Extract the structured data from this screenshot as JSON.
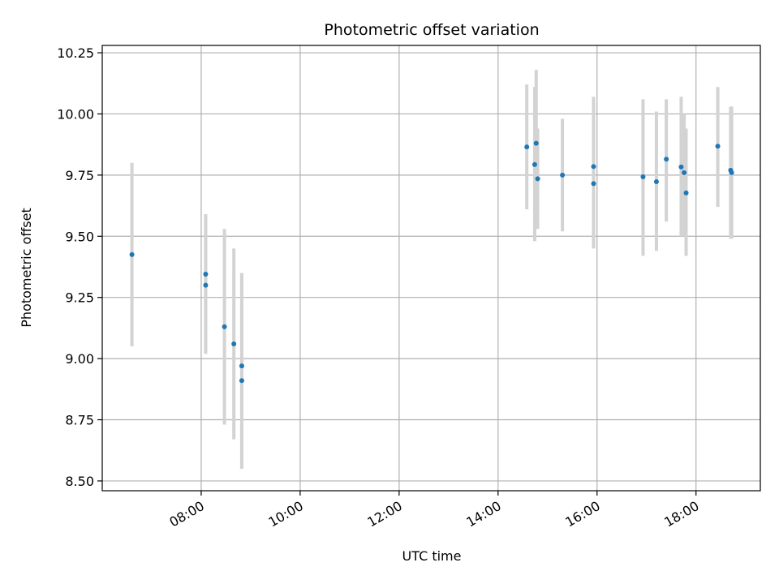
{
  "chart_data": {
    "type": "scatter",
    "title": "Photometric offset variation",
    "xlabel": "UTC time",
    "ylabel": "Photometric offset",
    "x_unit": "hours UTC",
    "xlim": [
      6.0,
      19.3
    ],
    "ylim": [
      8.46,
      10.28
    ],
    "x_ticks": [
      {
        "value": 8,
        "label": "08:00"
      },
      {
        "value": 10,
        "label": "10:00"
      },
      {
        "value": 12,
        "label": "12:00"
      },
      {
        "value": 14,
        "label": "14:00"
      },
      {
        "value": 16,
        "label": "16:00"
      },
      {
        "value": 18,
        "label": "18:00"
      }
    ],
    "y_ticks": [
      {
        "value": 8.5,
        "label": "8.50"
      },
      {
        "value": 8.75,
        "label": "8.75"
      },
      {
        "value": 9.0,
        "label": "9.00"
      },
      {
        "value": 9.25,
        "label": "9.25"
      },
      {
        "value": 9.5,
        "label": "9.50"
      },
      {
        "value": 9.75,
        "label": "9.75"
      },
      {
        "value": 10.0,
        "label": "10.00"
      },
      {
        "value": 10.25,
        "label": "10.25"
      }
    ],
    "grid": true,
    "marker_color": "#1f77b4",
    "errorbar_color": "#d3d3d3",
    "points": [
      {
        "x": 6.6,
        "y": 9.425,
        "ylow": 9.05,
        "yhigh": 9.8
      },
      {
        "x": 8.09,
        "y": 9.345,
        "ylow": 9.02,
        "yhigh": 9.59
      },
      {
        "x": 8.09,
        "y": 9.3,
        "ylow": 9.02,
        "yhigh": 9.59
      },
      {
        "x": 8.47,
        "y": 9.13,
        "ylow": 8.73,
        "yhigh": 9.53
      },
      {
        "x": 8.66,
        "y": 9.06,
        "ylow": 8.67,
        "yhigh": 9.45
      },
      {
        "x": 8.82,
        "y": 8.97,
        "ylow": 8.55,
        "yhigh": 9.35
      },
      {
        "x": 8.82,
        "y": 8.91,
        "ylow": 8.55,
        "yhigh": 9.35
      },
      {
        "x": 14.58,
        "y": 9.865,
        "ylow": 9.61,
        "yhigh": 10.12
      },
      {
        "x": 14.74,
        "y": 9.793,
        "ylow": 9.48,
        "yhigh": 10.11
      },
      {
        "x": 14.77,
        "y": 9.88,
        "ylow": 9.53,
        "yhigh": 10.18
      },
      {
        "x": 14.8,
        "y": 9.735,
        "ylow": 9.53,
        "yhigh": 9.94
      },
      {
        "x": 15.3,
        "y": 9.75,
        "ylow": 9.52,
        "yhigh": 9.98
      },
      {
        "x": 15.93,
        "y": 9.785,
        "ylow": 9.5,
        "yhigh": 10.07
      },
      {
        "x": 15.93,
        "y": 9.715,
        "ylow": 9.45,
        "yhigh": 9.98
      },
      {
        "x": 16.93,
        "y": 9.743,
        "ylow": 9.42,
        "yhigh": 10.06
      },
      {
        "x": 17.2,
        "y": 9.723,
        "ylow": 9.44,
        "yhigh": 10.01
      },
      {
        "x": 17.4,
        "y": 9.815,
        "ylow": 9.56,
        "yhigh": 10.06
      },
      {
        "x": 17.7,
        "y": 9.783,
        "ylow": 9.5,
        "yhigh": 10.07
      },
      {
        "x": 17.76,
        "y": 9.76,
        "ylow": 9.5,
        "yhigh": 10.0
      },
      {
        "x": 17.8,
        "y": 9.677,
        "ylow": 9.42,
        "yhigh": 9.94
      },
      {
        "x": 18.44,
        "y": 9.868,
        "ylow": 9.62,
        "yhigh": 10.11
      },
      {
        "x": 18.7,
        "y": 9.77,
        "ylow": 9.49,
        "yhigh": 10.03
      },
      {
        "x": 18.72,
        "y": 9.76,
        "ylow": 9.49,
        "yhigh": 10.03
      }
    ]
  }
}
